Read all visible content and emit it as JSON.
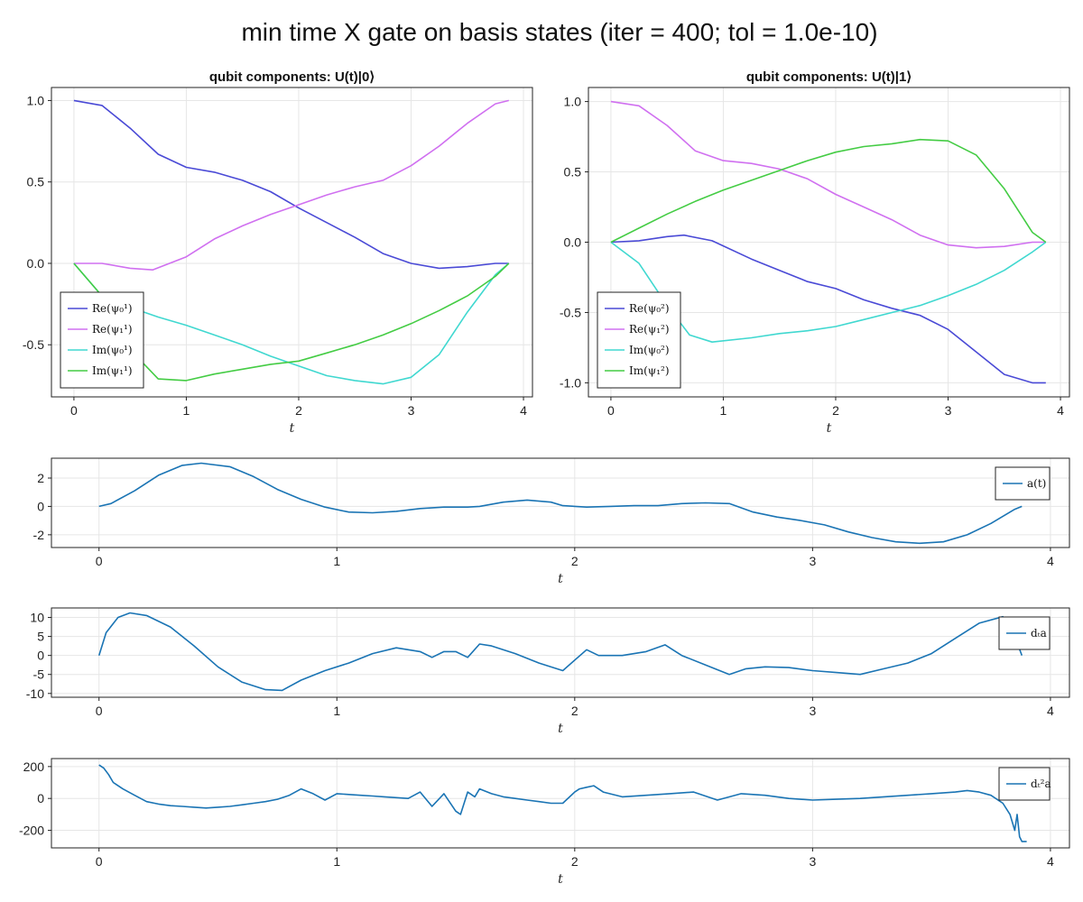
{
  "main_title": "min time X gate on basis states (iter = 400; tol = 1.0e-10)",
  "chart_data": [
    {
      "id": "qubit0",
      "type": "line",
      "title": "qubit components: U(t)|0⟩",
      "xlabel": "t",
      "xlim": [
        -0.2,
        4.08
      ],
      "ylim": [
        -0.82,
        1.08
      ],
      "xticks": [
        0,
        1,
        2,
        3,
        4
      ],
      "xtick_labels": [
        "0",
        "1",
        "2",
        "3",
        "4"
      ],
      "yticks": [
        1.0,
        0.5,
        0.0,
        -0.5
      ],
      "ytick_labels": [
        "1.0",
        "0.5",
        "0.0",
        "-0.5"
      ],
      "legend_position": "bottom-left",
      "series": [
        {
          "name": "Re(ψ₀¹)",
          "color": "#4a4ad6",
          "x": [
            0,
            0.25,
            0.5,
            0.75,
            1.0,
            1.25,
            1.5,
            1.75,
            2.0,
            2.25,
            2.5,
            2.75,
            3.0,
            3.25,
            3.5,
            3.75,
            3.87
          ],
          "y": [
            1.0,
            0.97,
            0.83,
            0.67,
            0.59,
            0.56,
            0.51,
            0.44,
            0.34,
            0.25,
            0.16,
            0.06,
            0.0,
            -0.03,
            -0.02,
            0.0,
            0.0
          ]
        },
        {
          "name": "Re(ψ₁¹)",
          "color": "#d070f0",
          "x": [
            0,
            0.25,
            0.5,
            0.7,
            1.0,
            1.25,
            1.5,
            1.75,
            2.0,
            2.25,
            2.5,
            2.75,
            3.0,
            3.25,
            3.5,
            3.75,
            3.87
          ],
          "y": [
            0.0,
            0.0,
            -0.03,
            -0.04,
            0.04,
            0.15,
            0.23,
            0.3,
            0.36,
            0.42,
            0.47,
            0.51,
            0.6,
            0.72,
            0.86,
            0.98,
            1.0
          ]
        },
        {
          "name": "Im(ψ₀¹)",
          "color": "#40d8d0",
          "x": [
            0,
            0.25,
            0.5,
            0.75,
            1.0,
            1.25,
            1.5,
            1.75,
            2.0,
            2.25,
            2.5,
            2.75,
            3.0,
            3.25,
            3.5,
            3.75,
            3.87
          ],
          "y": [
            0.0,
            -0.2,
            -0.27,
            -0.33,
            -0.38,
            -0.44,
            -0.5,
            -0.57,
            -0.63,
            -0.69,
            -0.72,
            -0.74,
            -0.7,
            -0.56,
            -0.3,
            -0.07,
            0.0
          ]
        },
        {
          "name": "Im(ψ₁¹)",
          "color": "#44cc44",
          "x": [
            0,
            0.25,
            0.5,
            0.75,
            1.0,
            1.25,
            1.5,
            1.75,
            2.0,
            2.25,
            2.5,
            2.75,
            3.0,
            3.25,
            3.5,
            3.75,
            3.87
          ],
          "y": [
            0.0,
            -0.2,
            -0.53,
            -0.71,
            -0.72,
            -0.68,
            -0.65,
            -0.62,
            -0.6,
            -0.55,
            -0.5,
            -0.44,
            -0.37,
            -0.29,
            -0.2,
            -0.08,
            0.0
          ]
        }
      ]
    },
    {
      "id": "qubit1",
      "type": "line",
      "title": "qubit components: U(t)|1⟩",
      "xlabel": "t",
      "xlim": [
        -0.2,
        4.08
      ],
      "ylim": [
        -1.1,
        1.1
      ],
      "xticks": [
        0,
        1,
        2,
        3,
        4
      ],
      "xtick_labels": [
        "0",
        "1",
        "2",
        "3",
        "4"
      ],
      "yticks": [
        1.0,
        0.5,
        0.0,
        -0.5,
        -1.0
      ],
      "ytick_labels": [
        "1.0",
        "0.5",
        "0.0",
        "-0.5",
        "-1.0"
      ],
      "legend_position": "bottom-left",
      "series": [
        {
          "name": "Re(ψ₀²)",
          "color": "#4a4ad6",
          "x": [
            0,
            0.25,
            0.5,
            0.65,
            0.9,
            1.25,
            1.5,
            1.75,
            2.0,
            2.25,
            2.5,
            2.75,
            3.0,
            3.25,
            3.5,
            3.75,
            3.87
          ],
          "y": [
            0.0,
            0.01,
            0.04,
            0.05,
            0.01,
            -0.12,
            -0.2,
            -0.28,
            -0.33,
            -0.41,
            -0.47,
            -0.52,
            -0.62,
            -0.78,
            -0.94,
            -1.0,
            -1.0
          ]
        },
        {
          "name": "Re(ψ₁²)",
          "color": "#d070f0",
          "x": [
            0,
            0.25,
            0.5,
            0.75,
            1.0,
            1.25,
            1.5,
            1.75,
            2.0,
            2.25,
            2.5,
            2.75,
            3.0,
            3.25,
            3.5,
            3.75,
            3.87
          ],
          "y": [
            1.0,
            0.97,
            0.83,
            0.65,
            0.58,
            0.56,
            0.52,
            0.45,
            0.34,
            0.25,
            0.16,
            0.05,
            -0.02,
            -0.04,
            -0.03,
            0.0,
            0.0
          ]
        },
        {
          "name": "Im(ψ₀²)",
          "color": "#40d8d0",
          "x": [
            0,
            0.25,
            0.5,
            0.7,
            0.9,
            1.25,
            1.5,
            1.75,
            2.0,
            2.25,
            2.5,
            2.75,
            3.0,
            3.25,
            3.5,
            3.75,
            3.87
          ],
          "y": [
            0.0,
            -0.15,
            -0.45,
            -0.66,
            -0.71,
            -0.68,
            -0.65,
            -0.63,
            -0.6,
            -0.55,
            -0.5,
            -0.45,
            -0.38,
            -0.3,
            -0.2,
            -0.07,
            0.0
          ]
        },
        {
          "name": "Im(ψ₁²)",
          "color": "#44cc44",
          "x": [
            0,
            0.25,
            0.5,
            0.75,
            1.0,
            1.25,
            1.5,
            1.75,
            2.0,
            2.25,
            2.5,
            2.75,
            3.0,
            3.25,
            3.5,
            3.75,
            3.87
          ],
          "y": [
            0.0,
            0.1,
            0.2,
            0.29,
            0.37,
            0.44,
            0.51,
            0.58,
            0.64,
            0.68,
            0.7,
            0.73,
            0.72,
            0.62,
            0.38,
            0.07,
            0.0
          ]
        }
      ]
    },
    {
      "id": "control_a",
      "type": "line",
      "xlabel": "t",
      "xlim": [
        -0.2,
        4.08
      ],
      "ylim": [
        -2.9,
        3.4
      ],
      "xticks": [
        0,
        1,
        2,
        3,
        4
      ],
      "xtick_labels": [
        "0",
        "1",
        "2",
        "3",
        "4"
      ],
      "yticks": [
        2,
        0,
        -2
      ],
      "ytick_labels": [
        "2",
        "0",
        "-2"
      ],
      "legend_position": "top-right",
      "series": [
        {
          "name": "a(t)",
          "color": "#1a74b4",
          "x": [
            0,
            0.05,
            0.15,
            0.25,
            0.35,
            0.43,
            0.55,
            0.65,
            0.75,
            0.85,
            0.95,
            1.05,
            1.15,
            1.25,
            1.35,
            1.45,
            1.55,
            1.6,
            1.7,
            1.8,
            1.9,
            1.95,
            2.05,
            2.15,
            2.25,
            2.35,
            2.45,
            2.55,
            2.65,
            2.75,
            2.85,
            2.95,
            3.05,
            3.15,
            3.25,
            3.35,
            3.45,
            3.55,
            3.65,
            3.75,
            3.85,
            3.88
          ],
          "y": [
            0.0,
            0.2,
            1.1,
            2.2,
            2.9,
            3.05,
            2.8,
            2.1,
            1.2,
            0.5,
            -0.05,
            -0.4,
            -0.45,
            -0.35,
            -0.15,
            -0.05,
            -0.05,
            0.0,
            0.3,
            0.45,
            0.3,
            0.05,
            -0.05,
            0.0,
            0.05,
            0.05,
            0.2,
            0.25,
            0.2,
            -0.4,
            -0.75,
            -1.0,
            -1.3,
            -1.8,
            -2.2,
            -2.5,
            -2.6,
            -2.5,
            -2.0,
            -1.2,
            -0.2,
            0.0
          ]
        }
      ]
    },
    {
      "id": "control_da",
      "type": "line",
      "xlabel": "t",
      "xlim": [
        -0.2,
        4.08
      ],
      "ylim": [
        -11,
        12.5
      ],
      "xticks": [
        0,
        1,
        2,
        3,
        4
      ],
      "xtick_labels": [
        "0",
        "1",
        "2",
        "3",
        "4"
      ],
      "yticks": [
        10,
        5,
        0,
        -5,
        -10
      ],
      "ytick_labels": [
        "10",
        "5",
        "0",
        "-5",
        "-10"
      ],
      "legend_position": "top-right",
      "series": [
        {
          "name": "dₜa",
          "color": "#1a74b4",
          "x": [
            0,
            0.03,
            0.08,
            0.13,
            0.2,
            0.3,
            0.4,
            0.5,
            0.6,
            0.7,
            0.77,
            0.85,
            0.95,
            1.05,
            1.15,
            1.25,
            1.35,
            1.4,
            1.45,
            1.5,
            1.55,
            1.6,
            1.65,
            1.75,
            1.85,
            1.95,
            2.05,
            2.1,
            2.2,
            2.3,
            2.38,
            2.45,
            2.55,
            2.65,
            2.72,
            2.8,
            2.9,
            3.0,
            3.1,
            3.2,
            3.3,
            3.4,
            3.5,
            3.6,
            3.7,
            3.8,
            3.85,
            3.88
          ],
          "y": [
            0,
            6,
            10,
            11.2,
            10.5,
            7.5,
            2.5,
            -3.0,
            -7.0,
            -9.0,
            -9.2,
            -6.5,
            -4.0,
            -2.0,
            0.5,
            2.0,
            1.0,
            -0.5,
            1.0,
            1.0,
            -0.5,
            3.0,
            2.5,
            0.5,
            -2.0,
            -4.0,
            1.5,
            0.0,
            0.0,
            1.0,
            2.8,
            0.0,
            -2.5,
            -5.0,
            -3.5,
            -3.0,
            -3.2,
            -4.0,
            -4.5,
            -5.0,
            -3.5,
            -2.0,
            0.5,
            4.5,
            8.5,
            10.2,
            5.0,
            0.0
          ]
        }
      ]
    },
    {
      "id": "control_dda",
      "type": "line",
      "xlabel": "t",
      "xlim": [
        -0.2,
        4.08
      ],
      "ylim": [
        -310,
        250
      ],
      "xticks": [
        0,
        1,
        2,
        3,
        4
      ],
      "xtick_labels": [
        "0",
        "1",
        "2",
        "3",
        "4"
      ],
      "yticks": [
        200,
        0,
        -200
      ],
      "ytick_labels": [
        "200",
        "0",
        "-200"
      ],
      "legend_position": "top-right",
      "series": [
        {
          "name": "dₜ²a",
          "color": "#1a74b4",
          "x": [
            0,
            0.02,
            0.04,
            0.06,
            0.1,
            0.15,
            0.2,
            0.25,
            0.3,
            0.35,
            0.4,
            0.45,
            0.5,
            0.55,
            0.6,
            0.65,
            0.7,
            0.75,
            0.8,
            0.85,
            0.9,
            0.95,
            1.0,
            1.05,
            1.1,
            1.15,
            1.2,
            1.25,
            1.3,
            1.35,
            1.4,
            1.45,
            1.5,
            1.52,
            1.55,
            1.58,
            1.6,
            1.65,
            1.7,
            1.75,
            1.8,
            1.85,
            1.9,
            1.95,
            2.0,
            2.02,
            2.05,
            2.08,
            2.12,
            2.2,
            2.3,
            2.4,
            2.5,
            2.6,
            2.7,
            2.8,
            2.9,
            3.0,
            3.1,
            3.2,
            3.3,
            3.4,
            3.5,
            3.6,
            3.65,
            3.7,
            3.75,
            3.8,
            3.83,
            3.85,
            3.86,
            3.87,
            3.88,
            3.9
          ],
          "y": [
            210,
            190,
            150,
            100,
            60,
            20,
            -20,
            -35,
            -45,
            -50,
            -55,
            -60,
            -55,
            -50,
            -40,
            -30,
            -20,
            -5,
            20,
            60,
            30,
            -10,
            30,
            25,
            20,
            15,
            10,
            5,
            0,
            40,
            -50,
            30,
            -80,
            -100,
            40,
            10,
            60,
            30,
            10,
            0,
            -10,
            -20,
            -30,
            -30,
            40,
            60,
            70,
            80,
            40,
            10,
            20,
            30,
            40,
            -10,
            30,
            20,
            0,
            -10,
            -5,
            0,
            10,
            20,
            30,
            40,
            50,
            40,
            20,
            -30,
            -100,
            -200,
            -100,
            -240,
            -270,
            -270
          ]
        }
      ]
    }
  ]
}
